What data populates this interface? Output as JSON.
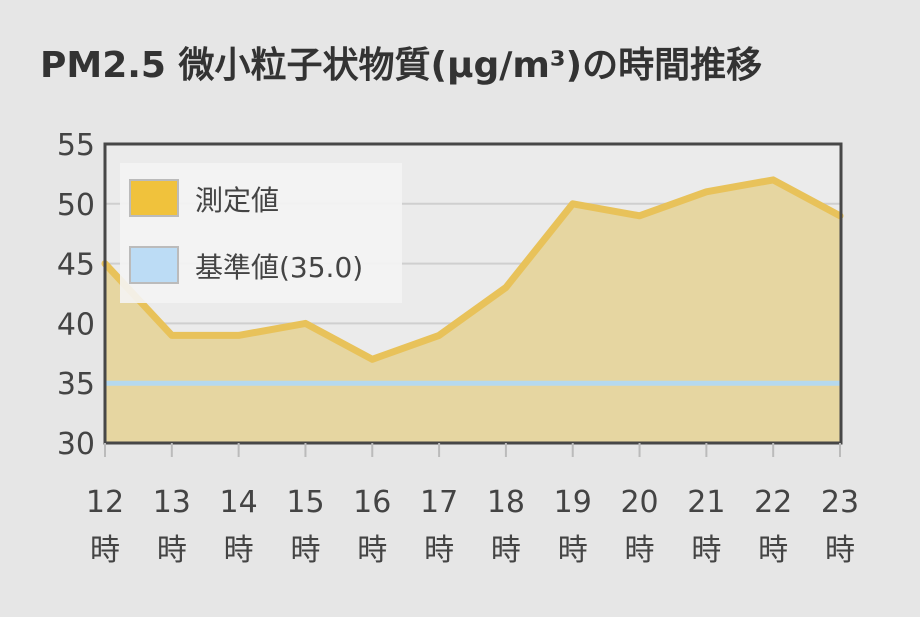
{
  "title": "PM2.5 微小粒子状物質(μg/m³)の時間推移",
  "chart_data": {
    "type": "area",
    "title": "PM2.5 微小粒子状物質(μg/m³)の時間推移",
    "x": [
      "12",
      "13",
      "14",
      "15",
      "16",
      "17",
      "18",
      "19",
      "20",
      "21",
      "22",
      "23"
    ],
    "x_unit_label": "時",
    "ylim": [
      30,
      55
    ],
    "yticks": [
      30,
      35,
      40,
      45,
      50,
      55
    ],
    "grid": true,
    "legend_position": "top-left",
    "series": [
      {
        "name": "測定値",
        "type": "area",
        "values": [
          45,
          39,
          39,
          40,
          37,
          39,
          43,
          50,
          49,
          51,
          52,
          49
        ],
        "line_color": "#e8c25a",
        "fill_color": "#e6d6a1",
        "legend_color": "#f0c23c"
      },
      {
        "name": "基準値(35.0)",
        "type": "line",
        "values": [
          35,
          35,
          35,
          35,
          35,
          35,
          35,
          35,
          35,
          35,
          35,
          35
        ],
        "line_color": "#b5d9ef",
        "legend_color": "#bcdcf5"
      }
    ]
  }
}
